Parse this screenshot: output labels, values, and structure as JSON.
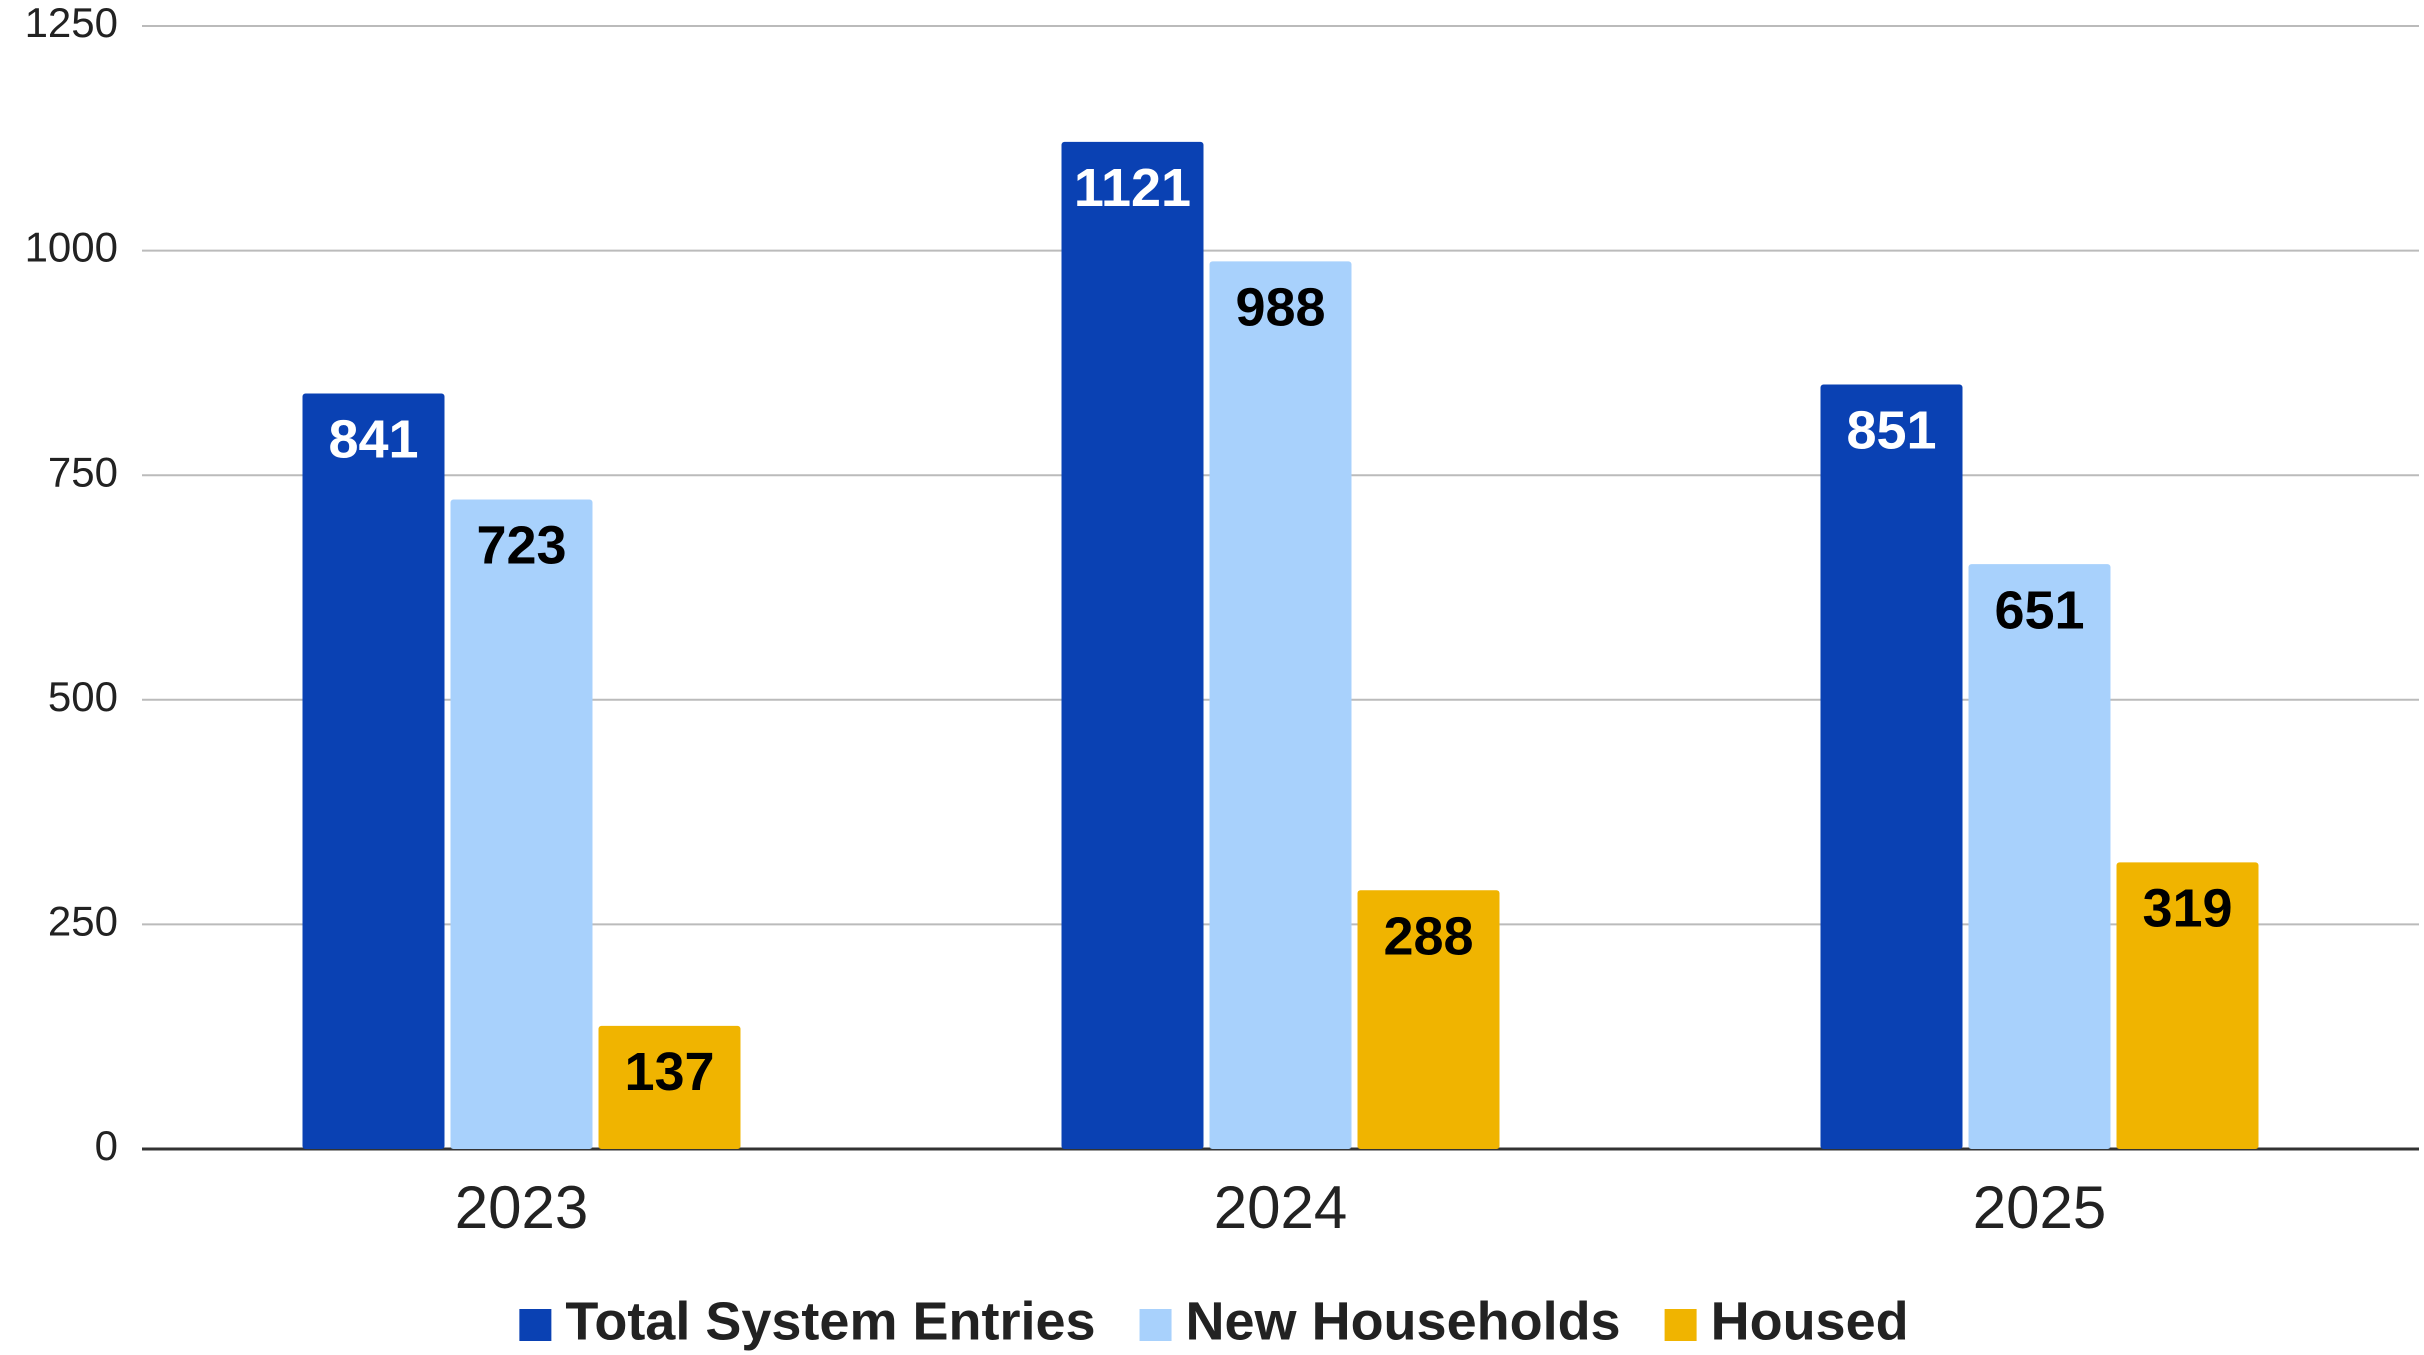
{
  "chart_data": {
    "type": "bar",
    "categories": [
      "2023",
      "2024",
      "2025"
    ],
    "series": [
      {
        "name": "Total System Entries",
        "color": "#0a41b3",
        "label_color": "#ffffff",
        "values": [
          841,
          1121,
          851
        ]
      },
      {
        "name": "New Households",
        "color": "#a8d1fc",
        "label_color": "#000000",
        "values": [
          723,
          988,
          651
        ]
      },
      {
        "name": "Housed",
        "color": "#f0b400",
        "label_color": "#000000",
        "values": [
          137,
          288,
          319
        ]
      }
    ],
    "ylim": [
      0,
      1250
    ],
    "yticks": [
      0,
      250,
      500,
      750,
      1000,
      1250
    ],
    "grid": true,
    "legend": "bottom"
  }
}
